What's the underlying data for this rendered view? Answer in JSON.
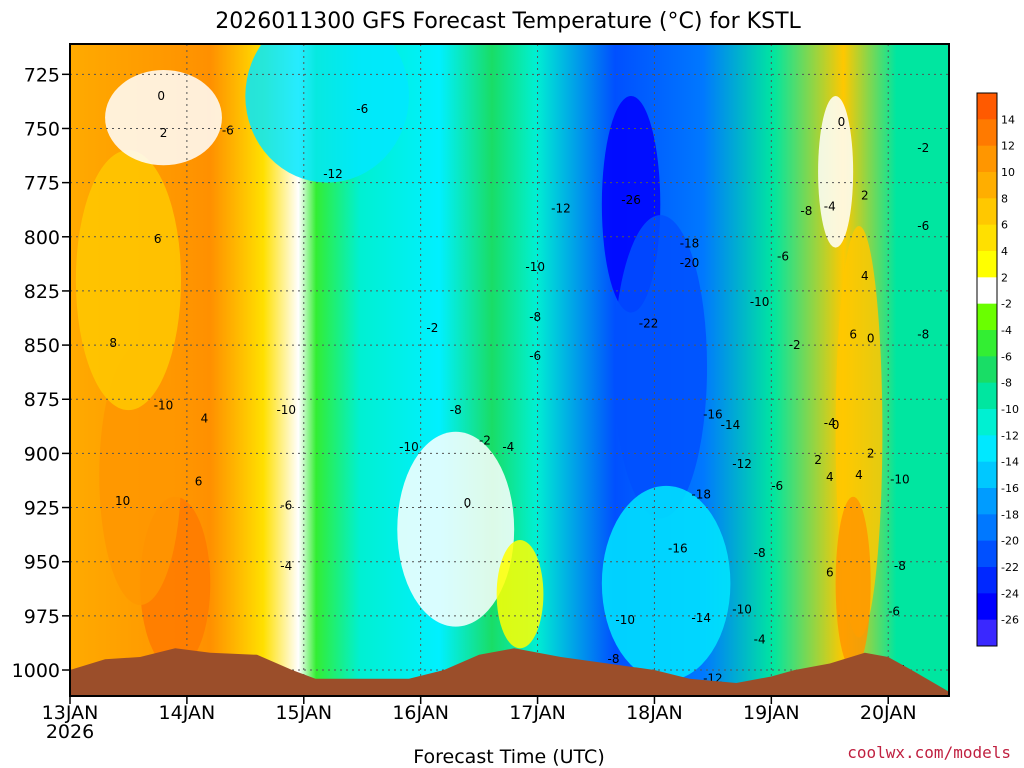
{
  "chart_data": {
    "type": "heatmap",
    "title": "2026011300 GFS Forecast Temperature (°C) for KSTL",
    "xlabel": "Forecast Time (UTC)",
    "ylabel": "Pressure (hPa)",
    "credit": "coolwx.com/models",
    "x_ticks": [
      "13JAN",
      "14JAN",
      "15JAN",
      "16JAN",
      "17JAN",
      "18JAN",
      "19JAN",
      "20JAN"
    ],
    "x_sub_label": "2026",
    "y_ticks": [
      725,
      750,
      775,
      800,
      825,
      850,
      875,
      900,
      925,
      950,
      975,
      1000
    ],
    "ylim": [
      1012,
      711
    ],
    "colorbar": {
      "labels": [
        "14",
        "12",
        "10",
        "8",
        "6",
        "4",
        "2",
        "-2",
        "-4",
        "-6",
        "-8",
        "-10",
        "-12",
        "-14",
        "-16",
        "-18",
        "-20",
        "-22",
        "-24",
        "-26"
      ],
      "colors": [
        "#ff5a00",
        "#ff7a00",
        "#ff9600",
        "#ffae00",
        "#ffc800",
        "#ffe000",
        "#ffff00",
        "#ffffff",
        "#6aff00",
        "#33ee33",
        "#19dd66",
        "#00e6a0",
        "#00f0d2",
        "#00e8ff",
        "#00c8ff",
        "#009cff",
        "#0078ff",
        "#0050ff",
        "#0028ff",
        "#0000ff",
        "#3a28ff"
      ]
    },
    "contour_labels": [
      {
        "t": 0.78,
        "p": 735,
        "label": "0"
      },
      {
        "t": 0.8,
        "p": 752,
        "label": "2"
      },
      {
        "t": 0.75,
        "p": 801,
        "label": "6"
      },
      {
        "t": 0.37,
        "p": 849,
        "label": "8"
      },
      {
        "t": 0.45,
        "p": 922,
        "label": "10"
      },
      {
        "t": 1.15,
        "p": 884,
        "label": "4"
      },
      {
        "t": 1.1,
        "p": 913,
        "label": "6"
      },
      {
        "t": 1.35,
        "p": 751,
        "label": "-6"
      },
      {
        "t": 2.5,
        "p": 741,
        "label": "-6"
      },
      {
        "t": 2.25,
        "p": 771,
        "label": "-12"
      },
      {
        "t": 0.8,
        "p": 878,
        "label": "-10"
      },
      {
        "t": 1.85,
        "p": 880,
        "label": "-10"
      },
      {
        "t": 3.3,
        "p": 880,
        "label": "-8"
      },
      {
        "t": 2.9,
        "p": 897,
        "label": "-10"
      },
      {
        "t": 1.85,
        "p": 924,
        "label": "-6"
      },
      {
        "t": 1.85,
        "p": 952,
        "label": "-4"
      },
      {
        "t": 3.1,
        "p": 842,
        "label": "-2"
      },
      {
        "t": 3.55,
        "p": 894,
        "label": "-2"
      },
      {
        "t": 3.75,
        "p": 897,
        "label": "-4"
      },
      {
        "t": 3.4,
        "p": 923,
        "label": "0"
      },
      {
        "t": 4.2,
        "p": 787,
        "label": "-12"
      },
      {
        "t": 3.98,
        "p": 814,
        "label": "-10"
      },
      {
        "t": 3.98,
        "p": 837,
        "label": "-8"
      },
      {
        "t": 3.98,
        "p": 855,
        "label": "-6"
      },
      {
        "t": 4.8,
        "p": 783,
        "label": "-26"
      },
      {
        "t": 5.3,
        "p": 803,
        "label": "-18"
      },
      {
        "t": 5.3,
        "p": 812,
        "label": "-20"
      },
      {
        "t": 4.95,
        "p": 840,
        "label": "-22"
      },
      {
        "t": 5.5,
        "p": 882,
        "label": "-16"
      },
      {
        "t": 5.65,
        "p": 887,
        "label": "-14"
      },
      {
        "t": 5.75,
        "p": 905,
        "label": "-12"
      },
      {
        "t": 5.4,
        "p": 919,
        "label": "-18"
      },
      {
        "t": 5.2,
        "p": 944,
        "label": "-16"
      },
      {
        "t": 5.4,
        "p": 976,
        "label": "-14"
      },
      {
        "t": 4.75,
        "p": 977,
        "label": "-10"
      },
      {
        "t": 4.65,
        "p": 995,
        "label": "-8"
      },
      {
        "t": 5.5,
        "p": 1004,
        "label": "-12"
      },
      {
        "t": 6.3,
        "p": 788,
        "label": "-8"
      },
      {
        "t": 6.5,
        "p": 786,
        "label": "-4"
      },
      {
        "t": 7.3,
        "p": 759,
        "label": "-2"
      },
      {
        "t": 6.1,
        "p": 809,
        "label": "-6"
      },
      {
        "t": 5.9,
        "p": 830,
        "label": "-10"
      },
      {
        "t": 6.2,
        "p": 850,
        "label": "-2"
      },
      {
        "t": 6.5,
        "p": 886,
        "label": "-4"
      },
      {
        "t": 6.55,
        "p": 887,
        "label": "0"
      },
      {
        "t": 6.05,
        "p": 915,
        "label": "-6"
      },
      {
        "t": 5.9,
        "p": 946,
        "label": "-8"
      },
      {
        "t": 5.75,
        "p": 972,
        "label": "-10"
      },
      {
        "t": 5.9,
        "p": 986,
        "label": "-4"
      },
      {
        "t": 6.6,
        "p": 747,
        "label": "0"
      },
      {
        "t": 6.8,
        "p": 781,
        "label": "2"
      },
      {
        "t": 6.8,
        "p": 818,
        "label": "4"
      },
      {
        "t": 6.7,
        "p": 845,
        "label": "6"
      },
      {
        "t": 6.85,
        "p": 847,
        "label": "0"
      },
      {
        "t": 6.4,
        "p": 903,
        "label": "2"
      },
      {
        "t": 6.5,
        "p": 911,
        "label": "4"
      },
      {
        "t": 6.75,
        "p": 910,
        "label": "4"
      },
      {
        "t": 6.85,
        "p": 900,
        "label": "2"
      },
      {
        "t": 6.5,
        "p": 955,
        "label": "6"
      },
      {
        "t": 7.1,
        "p": 912,
        "label": "-10"
      },
      {
        "t": 7.3,
        "p": 795,
        "label": "-6"
      },
      {
        "t": 7.3,
        "p": 845,
        "label": "-8"
      },
      {
        "t": 7.1,
        "p": 952,
        "label": "-8"
      },
      {
        "t": 7.05,
        "p": 973,
        "label": "-6"
      },
      {
        "t": 7.1,
        "p": 1000,
        "label": "-4"
      }
    ]
  }
}
